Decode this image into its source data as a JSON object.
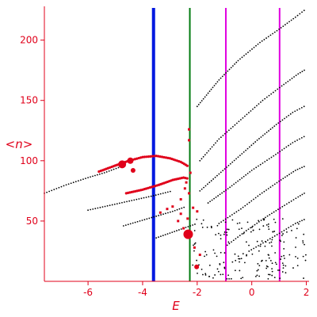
{
  "chart_data": {
    "type": "scatter",
    "xlabel": "E",
    "ylabel": "<n>",
    "xlim": [
      -7.6,
      2.1
    ],
    "ylim": [
      0,
      228
    ],
    "grid": false,
    "x_ticks": [
      -6,
      -4,
      -2,
      0,
      2
    ],
    "y_ticks": [
      50,
      100,
      150,
      200
    ],
    "colors": {
      "axis": "#e0001a",
      "black_points": "#000000",
      "red_points": "#e0001a",
      "blue_line": "#0018e0",
      "green_line": "#007a10",
      "magenta_line": "#e000e0"
    },
    "vertical_lines": [
      {
        "x": -3.6,
        "color": "#0018e0",
        "width": 4
      },
      {
        "x": -2.27,
        "color": "#007a10",
        "width": 2
      },
      {
        "x": -0.95,
        "color": "#e000e0",
        "width": 2
      },
      {
        "x": 1.02,
        "color": "#e000e0",
        "width": 2
      }
    ],
    "black_series": [
      {
        "x": [
          -7.6,
          -6.8,
          -6.0,
          -5.4,
          -4.8
        ],
        "y": [
          73,
          80,
          86,
          90,
          95
        ]
      },
      {
        "x": [
          -6.0,
          -5.2,
          -4.4,
          -3.6,
          -2.9
        ],
        "y": [
          59,
          63,
          67,
          71,
          75
        ]
      },
      {
        "x": [
          -4.7,
          -4.1,
          -3.5,
          -2.9,
          -2.4
        ],
        "y": [
          46,
          50,
          54,
          58,
          62
        ]
      },
      {
        "x": [
          -3.5,
          -3.0,
          -2.5,
          -2.0
        ],
        "y": [
          36,
          40,
          44,
          48
        ]
      },
      {
        "x": [
          -2.0,
          -1.2,
          -0.5,
          0.3,
          1.0,
          1.6,
          2.0
        ],
        "y": [
          145,
          167,
          183,
          198,
          209,
          219,
          226
        ]
      },
      {
        "x": [
          -1.9,
          -1.2,
          -0.4,
          0.4,
          1.1,
          1.7,
          2.0
        ],
        "y": [
          100,
          118,
          134,
          150,
          162,
          172,
          176
        ]
      },
      {
        "x": [
          -1.9,
          -1.2,
          -0.5,
          0.2,
          0.9,
          1.5,
          2.0
        ],
        "y": [
          75,
          89,
          103,
          117,
          130,
          140,
          146
        ]
      },
      {
        "x": [
          -1.6,
          -0.8,
          0.0,
          0.8,
          1.5,
          2.0
        ],
        "y": [
          65,
          78,
          92,
          104,
          115,
          121
        ]
      },
      {
        "x": [
          -1.2,
          -0.4,
          0.3,
          1.0,
          1.6,
          2.0
        ],
        "y": [
          48,
          60,
          72,
          83,
          92,
          96
        ]
      },
      {
        "x": [
          -0.9,
          -0.2,
          0.5,
          1.2,
          1.7,
          2.0
        ],
        "y": [
          30,
          42,
          53,
          63,
          70,
          74
        ]
      },
      {
        "x": [
          -0.1,
          0.5,
          1.1,
          1.6,
          2.0
        ],
        "y": [
          25,
          33,
          41,
          48,
          52
        ]
      }
    ],
    "black_scatter_region": {
      "x": [
        -2.2,
        2.0
      ],
      "y": [
        2,
        52
      ],
      "count": 180
    },
    "red_series": [
      {
        "x": [
          -5.6,
          -5.0,
          -4.5,
          -4.0,
          -3.5,
          -3.0,
          -2.6,
          -2.3
        ],
        "y": [
          91,
          96,
          100,
          103,
          104,
          102,
          99,
          95
        ]
      },
      {
        "x": [
          -4.6,
          -4.0,
          -3.4,
          -2.9,
          -2.5,
          -2.3
        ],
        "y": [
          73,
          76,
          80,
          84,
          86,
          85
        ]
      }
    ],
    "red_large_points": [
      {
        "x": -4.75,
        "y": 97,
        "size": 5
      },
      {
        "x": -4.45,
        "y": 100,
        "size": 4
      },
      {
        "x": -2.33,
        "y": 39,
        "size": 6
      },
      {
        "x": -2.02,
        "y": 12,
        "size": 3
      },
      {
        "x": -4.35,
        "y": 92,
        "size": 3
      }
    ],
    "red_scatter": [
      {
        "x": -2.3,
        "y": 126
      },
      {
        "x": -2.3,
        "y": 117
      },
      {
        "x": -2.25,
        "y": 90
      },
      {
        "x": -2.4,
        "y": 82
      },
      {
        "x": -2.45,
        "y": 77
      },
      {
        "x": -2.3,
        "y": 73
      },
      {
        "x": -2.6,
        "y": 68
      },
      {
        "x": -2.9,
        "y": 62
      },
      {
        "x": -3.1,
        "y": 60
      },
      {
        "x": -2.6,
        "y": 56
      },
      {
        "x": -2.35,
        "y": 52
      },
      {
        "x": -2.15,
        "y": 61
      },
      {
        "x": -2.0,
        "y": 58
      },
      {
        "x": -2.5,
        "y": 44
      },
      {
        "x": -2.1,
        "y": 28
      },
      {
        "x": -1.9,
        "y": 22
      },
      {
        "x": -2.7,
        "y": 50
      },
      {
        "x": -3.35,
        "y": 57
      }
    ]
  }
}
